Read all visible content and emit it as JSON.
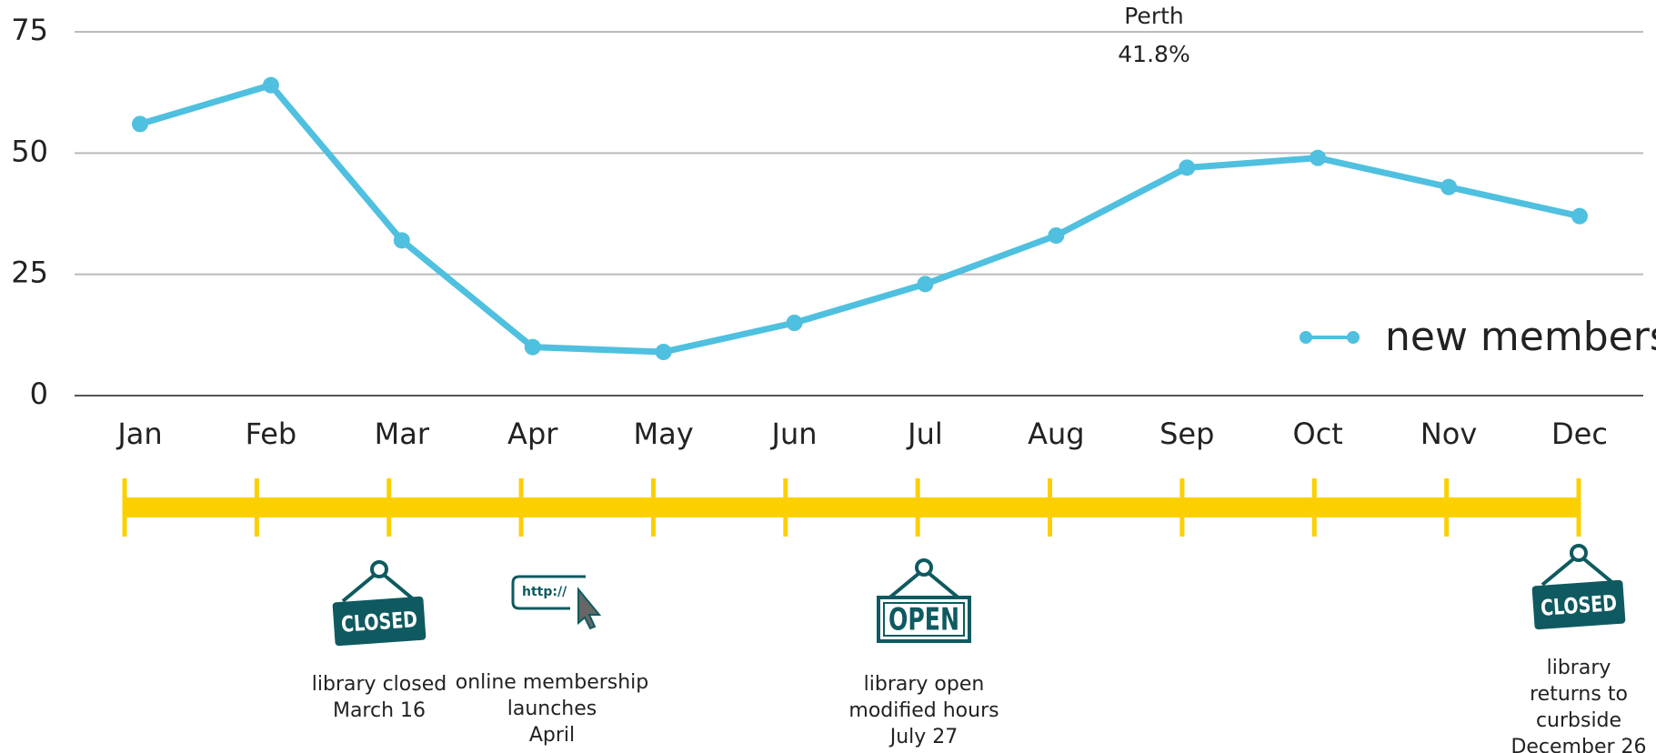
{
  "chart_data": {
    "type": "line",
    "categories": [
      "Jan",
      "Feb",
      "Mar",
      "Apr",
      "May",
      "Jun",
      "Jul",
      "Aug",
      "Sep",
      "Oct",
      "Nov",
      "Dec"
    ],
    "series": [
      {
        "name": "new members",
        "color": "#4fc0df",
        "values": [
          56,
          64,
          32,
          10,
          9,
          15,
          23,
          33,
          47,
          49,
          43,
          37
        ]
      }
    ],
    "ylim": [
      0,
      75
    ],
    "yticks": [
      0,
      25,
      50,
      75
    ],
    "grid": true,
    "legend": "right",
    "annotations": [
      "Perth",
      "41.8%"
    ],
    "events": [
      {
        "icon": "CLOSED",
        "lines": [
          "library closed",
          "March 16"
        ]
      },
      {
        "icon": "http://",
        "lines": [
          "online membership",
          "launches",
          "April"
        ]
      },
      {
        "icon": "OPEN",
        "lines": [
          "library open",
          "modified hours",
          "July 27"
        ]
      },
      {
        "icon": "CLOSED",
        "lines": [
          "library",
          "returns to",
          "curbside",
          "December 26"
        ]
      }
    ]
  }
}
